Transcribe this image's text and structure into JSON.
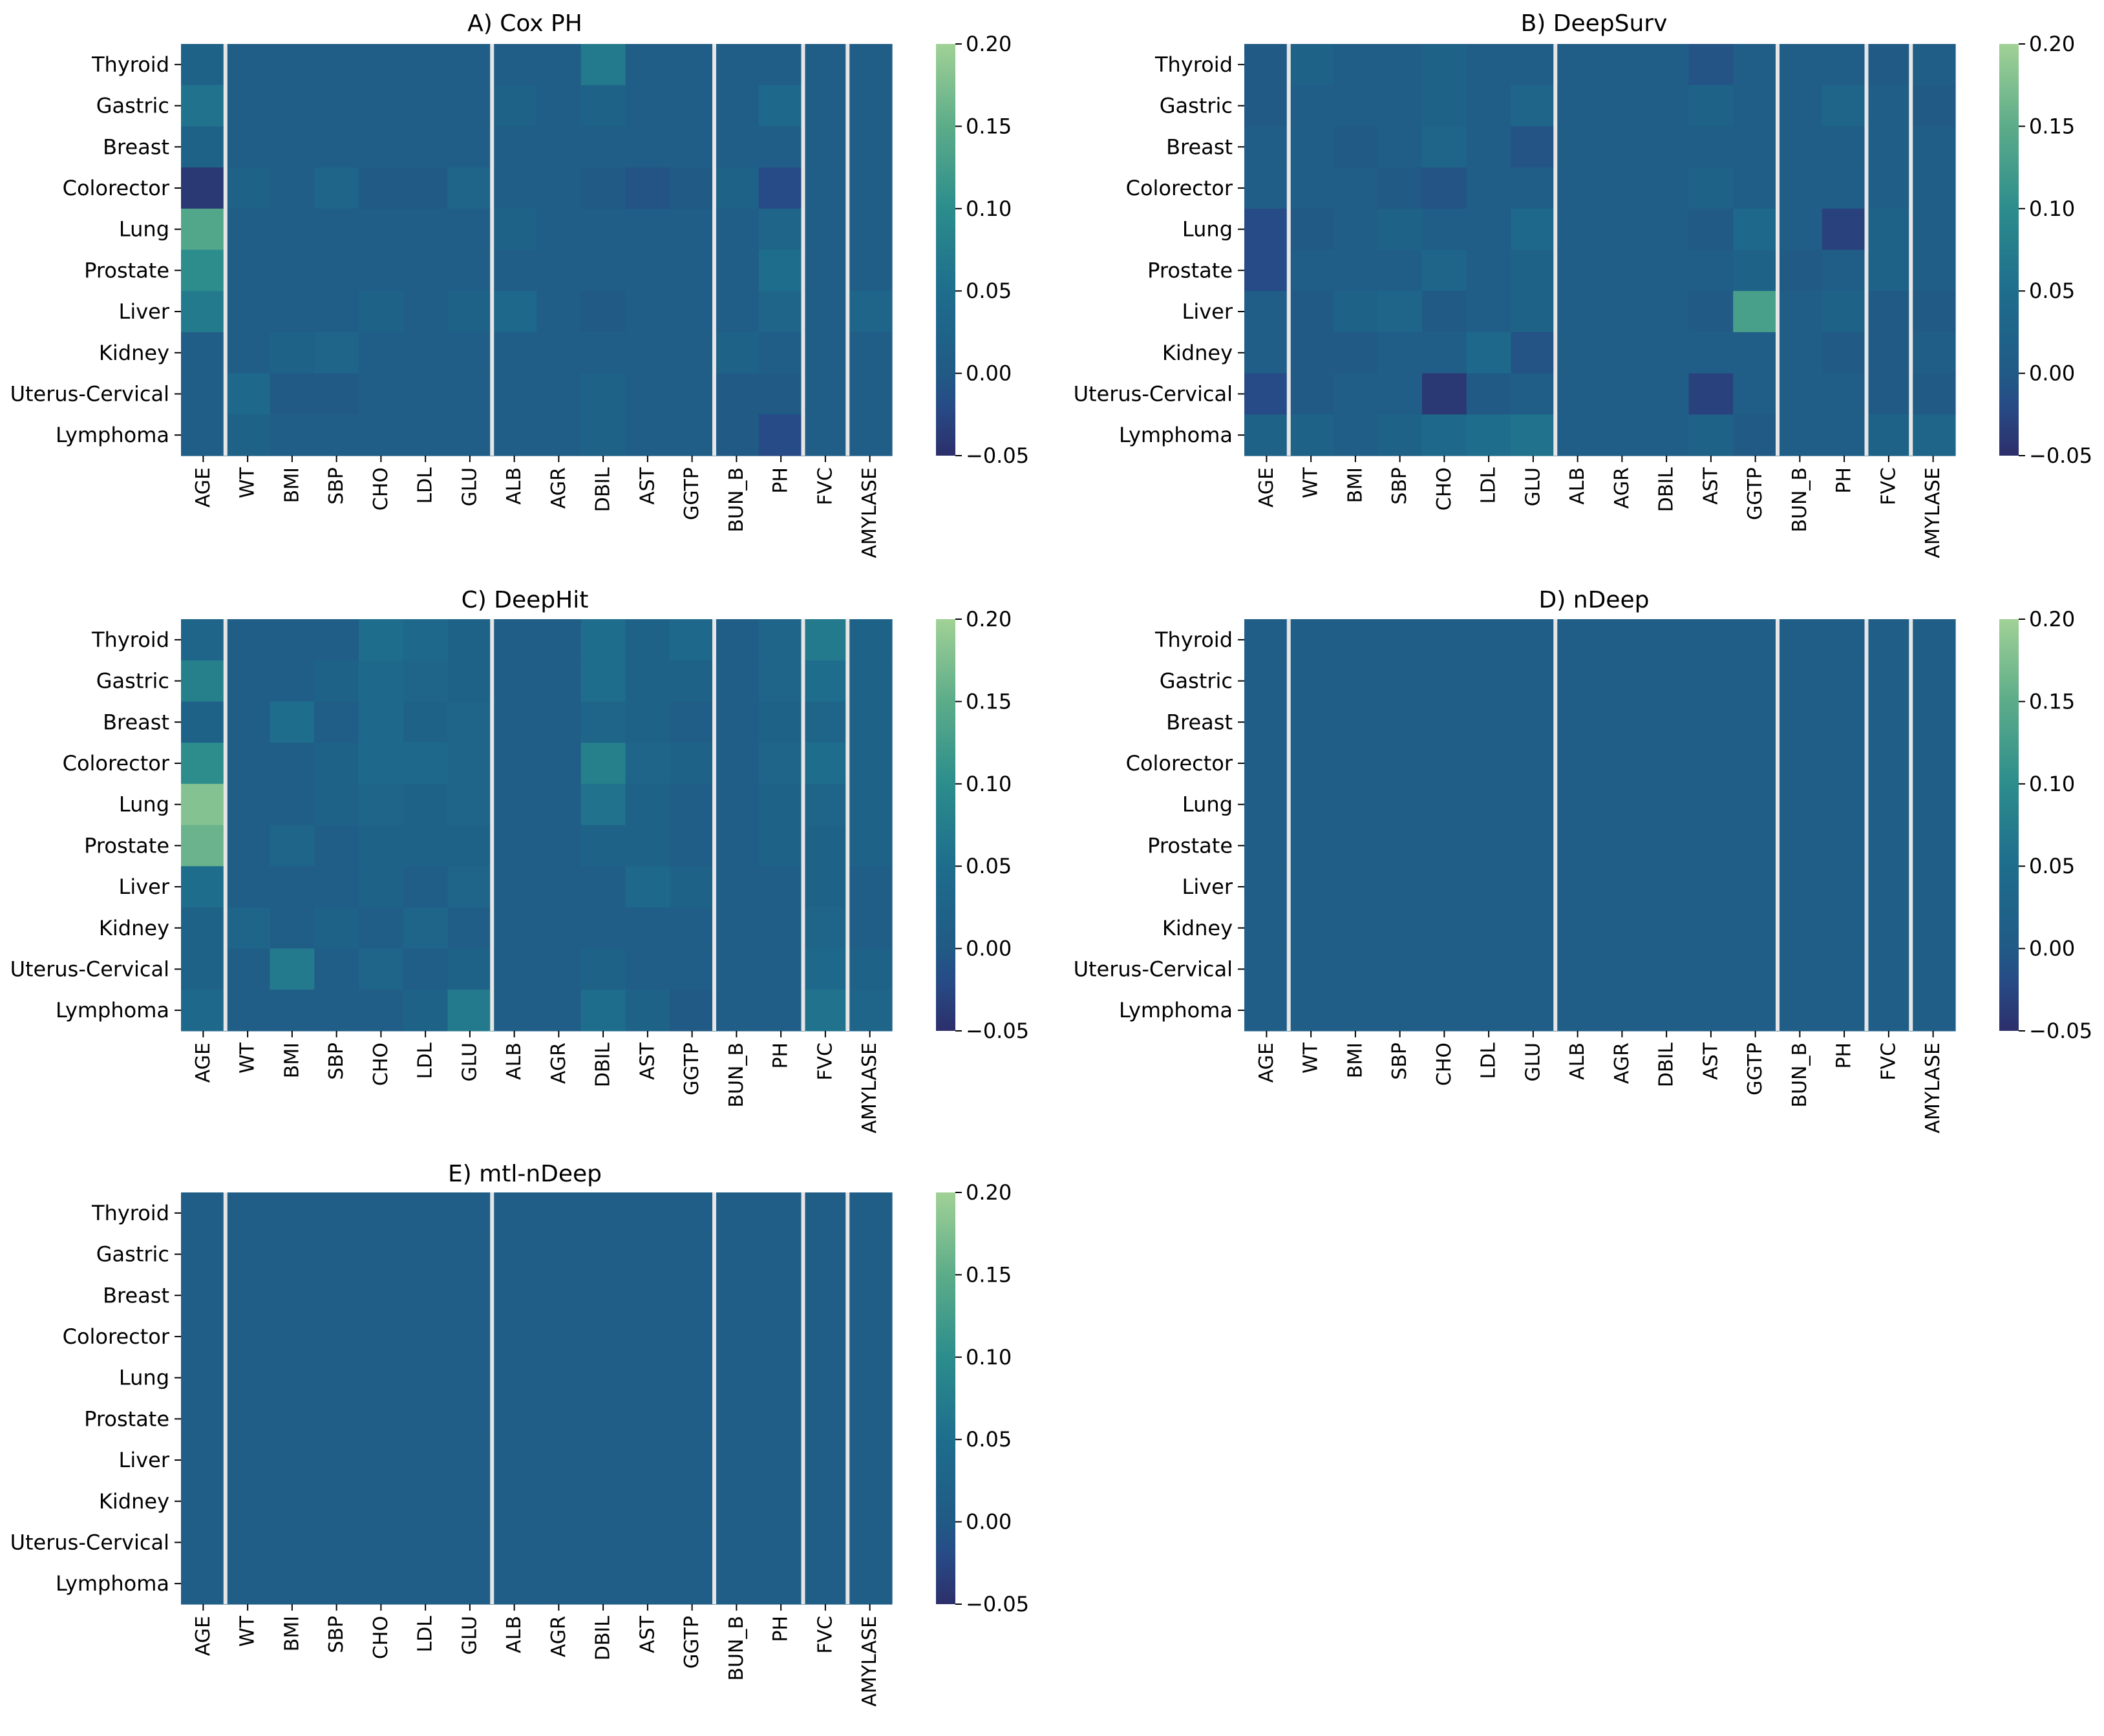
{
  "colormap": {
    "stops": [
      {
        "v": -0.05,
        "color": "#2c2f6b"
      },
      {
        "v": -0.02,
        "color": "#274b86"
      },
      {
        "v": 0.0,
        "color": "#205a85"
      },
      {
        "v": 0.05,
        "color": "#1e6d8d"
      },
      {
        "v": 0.1,
        "color": "#2c8d8c"
      },
      {
        "v": 0.15,
        "color": "#5cac89"
      },
      {
        "v": 0.2,
        "color": "#a1d196"
      }
    ],
    "separator_color": "#e6e6e6"
  },
  "chart_data": [
    {
      "type": "heatmap",
      "title": "A) Cox PH",
      "rows": [
        "Thyroid",
        "Gastric",
        "Breast",
        "Colorector",
        "Lung",
        "Prostate",
        "Liver",
        "Kidney",
        "Uterus-Cervical",
        "Lymphoma"
      ],
      "columns": [
        "AGE",
        "WT",
        "BMI",
        "SBP",
        "CHO",
        "LDL",
        "GLU",
        "ALB",
        "AGR",
        "DBIL",
        "AST",
        "GGTP",
        "BUN_B",
        "PH",
        "FVC",
        "AMYLASE"
      ],
      "group_separators_after": [
        "AGE",
        "GLU",
        "GGTP",
        "PH",
        "FVC"
      ],
      "vmin": -0.05,
      "vmax": 0.2,
      "colorbar_ticks": [
        "0.20",
        "0.15",
        "0.10",
        "0.05",
        "0.00",
        "−0.05"
      ],
      "values": [
        [
          0.02,
          0.01,
          0.01,
          0.01,
          0.01,
          0.01,
          0.01,
          0.01,
          0.01,
          0.07,
          0.01,
          0.01,
          0.01,
          0.01,
          0.01,
          0.01
        ],
        [
          0.06,
          0.01,
          0.01,
          0.01,
          0.01,
          0.01,
          0.01,
          0.02,
          0.01,
          0.02,
          0.01,
          0.01,
          0.01,
          0.04,
          0.01,
          0.01
        ],
        [
          0.02,
          0.01,
          0.01,
          0.01,
          0.01,
          0.01,
          0.01,
          0.01,
          0.01,
          0.01,
          0.01,
          0.01,
          0.01,
          0.01,
          0.01,
          0.01
        ],
        [
          -0.04,
          0.02,
          0.01,
          0.03,
          0.0,
          0.0,
          0.03,
          0.01,
          0.01,
          0.0,
          -0.01,
          0.0,
          0.02,
          -0.02,
          0.01,
          0.01
        ],
        [
          0.14,
          0.01,
          0.01,
          0.01,
          0.01,
          0.01,
          0.01,
          0.02,
          0.01,
          0.01,
          0.01,
          0.01,
          0.01,
          0.03,
          0.01,
          0.01
        ],
        [
          0.1,
          0.01,
          0.01,
          0.01,
          0.01,
          0.01,
          0.01,
          0.01,
          0.01,
          0.01,
          0.01,
          0.01,
          0.01,
          0.05,
          0.01,
          0.01
        ],
        [
          0.07,
          0.01,
          0.01,
          0.01,
          0.02,
          0.01,
          0.02,
          0.04,
          0.01,
          0.0,
          0.01,
          0.01,
          0.01,
          0.03,
          0.01,
          0.03
        ],
        [
          0.01,
          0.01,
          0.02,
          0.03,
          0.01,
          0.01,
          0.01,
          0.01,
          0.01,
          0.01,
          0.01,
          0.01,
          0.02,
          0.01,
          0.01,
          0.01
        ],
        [
          0.01,
          0.04,
          0.0,
          0.0,
          0.01,
          0.01,
          0.01,
          0.01,
          0.01,
          0.02,
          0.01,
          0.01,
          0.0,
          0.0,
          0.01,
          0.01
        ],
        [
          0.01,
          0.02,
          0.01,
          0.01,
          0.01,
          0.01,
          0.01,
          0.01,
          0.01,
          0.02,
          0.01,
          0.01,
          0.0,
          -0.02,
          0.01,
          0.01
        ]
      ]
    },
    {
      "type": "heatmap",
      "title": "B) DeepSurv",
      "rows": [
        "Thyroid",
        "Gastric",
        "Breast",
        "Colorector",
        "Lung",
        "Prostate",
        "Liver",
        "Kidney",
        "Uterus-Cervical",
        "Lymphoma"
      ],
      "columns": [
        "AGE",
        "WT",
        "BMI",
        "SBP",
        "CHO",
        "LDL",
        "GLU",
        "ALB",
        "AGR",
        "DBIL",
        "AST",
        "GGTP",
        "BUN_B",
        "PH",
        "FVC",
        "AMYLASE"
      ],
      "group_separators_after": [
        "AGE",
        "GLU",
        "GGTP",
        "PH",
        "FVC"
      ],
      "vmin": -0.05,
      "vmax": 0.2,
      "colorbar_ticks": [
        "0.20",
        "0.15",
        "0.10",
        "0.05",
        "0.00",
        "−0.05"
      ],
      "values": [
        [
          0.0,
          0.02,
          0.01,
          0.01,
          0.02,
          0.01,
          0.01,
          0.01,
          0.01,
          0.01,
          -0.01,
          0.01,
          0.01,
          0.01,
          0.0,
          0.01
        ],
        [
          0.0,
          0.01,
          0.01,
          0.01,
          0.02,
          0.01,
          0.03,
          0.01,
          0.01,
          0.01,
          0.02,
          0.01,
          0.01,
          0.03,
          0.01,
          0.0
        ],
        [
          0.01,
          0.01,
          0.0,
          0.01,
          0.03,
          0.01,
          -0.01,
          0.01,
          0.01,
          0.01,
          0.01,
          0.01,
          0.01,
          0.01,
          0.01,
          0.01
        ],
        [
          0.01,
          0.01,
          0.01,
          0.0,
          -0.01,
          0.01,
          0.01,
          0.01,
          0.01,
          0.01,
          0.02,
          0.01,
          0.01,
          0.01,
          0.01,
          0.01
        ],
        [
          -0.02,
          0.0,
          0.01,
          0.02,
          0.01,
          0.01,
          0.04,
          0.01,
          0.01,
          0.01,
          0.0,
          0.04,
          0.01,
          -0.03,
          0.02,
          0.01
        ],
        [
          -0.02,
          0.01,
          0.01,
          0.01,
          0.03,
          0.01,
          0.02,
          0.01,
          0.01,
          0.01,
          0.01,
          0.02,
          0.0,
          0.01,
          0.02,
          0.01
        ],
        [
          0.01,
          0.0,
          0.02,
          0.03,
          0.0,
          0.01,
          0.02,
          0.01,
          0.01,
          0.01,
          0.0,
          0.13,
          0.01,
          0.02,
          0.0,
          0.0
        ],
        [
          0.01,
          0.0,
          0.0,
          0.01,
          0.01,
          0.04,
          -0.01,
          0.01,
          0.01,
          0.01,
          0.01,
          0.01,
          0.01,
          0.0,
          0.0,
          0.01
        ],
        [
          -0.02,
          0.0,
          0.01,
          0.01,
          -0.04,
          0.0,
          0.01,
          0.01,
          0.01,
          0.01,
          -0.03,
          0.01,
          0.01,
          0.01,
          0.0,
          0.0
        ],
        [
          0.02,
          0.02,
          0.01,
          0.02,
          0.04,
          0.05,
          0.06,
          0.01,
          0.01,
          0.01,
          0.02,
          0.0,
          0.01,
          0.01,
          0.02,
          0.03
        ]
      ]
    },
    {
      "type": "heatmap",
      "title": "C) DeepHit",
      "rows": [
        "Thyroid",
        "Gastric",
        "Breast",
        "Colorector",
        "Lung",
        "Prostate",
        "Liver",
        "Kidney",
        "Uterus-Cervical",
        "Lymphoma"
      ],
      "columns": [
        "AGE",
        "WT",
        "BMI",
        "SBP",
        "CHO",
        "LDL",
        "GLU",
        "ALB",
        "AGR",
        "DBIL",
        "AST",
        "GGTP",
        "BUN_B",
        "PH",
        "FVC",
        "AMYLASE"
      ],
      "group_separators_after": [
        "AGE",
        "GLU",
        "GGTP",
        "PH",
        "FVC"
      ],
      "vmin": -0.05,
      "vmax": 0.2,
      "colorbar_ticks": [
        "0.20",
        "0.15",
        "0.10",
        "0.05",
        "0.00",
        "−0.05"
      ],
      "values": [
        [
          0.03,
          0.01,
          0.01,
          0.01,
          0.05,
          0.04,
          0.02,
          0.01,
          0.01,
          0.05,
          0.02,
          0.04,
          0.01,
          0.03,
          0.07,
          0.02
        ],
        [
          0.08,
          0.01,
          0.01,
          0.02,
          0.04,
          0.03,
          0.02,
          0.01,
          0.01,
          0.05,
          0.02,
          0.02,
          0.01,
          0.03,
          0.05,
          0.02
        ],
        [
          0.02,
          0.01,
          0.05,
          0.01,
          0.04,
          0.02,
          0.03,
          0.01,
          0.01,
          0.03,
          0.02,
          0.01,
          0.01,
          0.02,
          0.03,
          0.02
        ],
        [
          0.1,
          0.01,
          0.01,
          0.02,
          0.04,
          0.04,
          0.03,
          0.01,
          0.01,
          0.08,
          0.03,
          0.02,
          0.01,
          0.03,
          0.05,
          0.02
        ],
        [
          0.18,
          0.01,
          0.01,
          0.02,
          0.03,
          0.02,
          0.03,
          0.01,
          0.01,
          0.06,
          0.02,
          0.01,
          0.01,
          0.02,
          0.03,
          0.02
        ],
        [
          0.16,
          0.01,
          0.03,
          0.01,
          0.02,
          0.02,
          0.02,
          0.01,
          0.01,
          0.02,
          0.02,
          0.01,
          0.01,
          0.02,
          0.02,
          0.02
        ],
        [
          0.05,
          0.01,
          0.01,
          0.01,
          0.02,
          0.01,
          0.03,
          0.01,
          0.01,
          0.01,
          0.04,
          0.02,
          0.01,
          0.01,
          0.02,
          0.01
        ],
        [
          0.02,
          0.03,
          0.01,
          0.02,
          0.01,
          0.03,
          0.01,
          0.01,
          0.01,
          0.01,
          0.01,
          0.01,
          0.01,
          0.01,
          0.03,
          0.01
        ],
        [
          0.02,
          0.01,
          0.07,
          0.01,
          0.03,
          0.01,
          0.02,
          0.01,
          0.01,
          0.02,
          0.01,
          0.01,
          0.01,
          0.01,
          0.04,
          0.02
        ],
        [
          0.04,
          0.01,
          0.01,
          0.01,
          0.01,
          0.02,
          0.07,
          0.01,
          0.01,
          0.05,
          0.02,
          0.0,
          0.01,
          0.01,
          0.06,
          0.03
        ]
      ]
    },
    {
      "type": "heatmap",
      "title": "D) nDeep",
      "rows": [
        "Thyroid",
        "Gastric",
        "Breast",
        "Colorector",
        "Lung",
        "Prostate",
        "Liver",
        "Kidney",
        "Uterus-Cervical",
        "Lymphoma"
      ],
      "columns": [
        "AGE",
        "WT",
        "BMI",
        "SBP",
        "CHO",
        "LDL",
        "GLU",
        "ALB",
        "AGR",
        "DBIL",
        "AST",
        "GGTP",
        "BUN_B",
        "PH",
        "FVC",
        "AMYLASE"
      ],
      "group_separators_after": [
        "AGE",
        "GLU",
        "GGTP",
        "PH",
        "FVC"
      ],
      "vmin": -0.05,
      "vmax": 0.2,
      "colorbar_ticks": [
        "0.20",
        "0.15",
        "0.10",
        "0.05",
        "0.00",
        "−0.05"
      ],
      "uniform_value": 0.01
    },
    {
      "type": "heatmap",
      "title": "E) mtl-nDeep",
      "rows": [
        "Thyroid",
        "Gastric",
        "Breast",
        "Colorector",
        "Lung",
        "Prostate",
        "Liver",
        "Kidney",
        "Uterus-Cervical",
        "Lymphoma"
      ],
      "columns": [
        "AGE",
        "WT",
        "BMI",
        "SBP",
        "CHO",
        "LDL",
        "GLU",
        "ALB",
        "AGR",
        "DBIL",
        "AST",
        "GGTP",
        "BUN_B",
        "PH",
        "FVC",
        "AMYLASE"
      ],
      "group_separators_after": [
        "AGE",
        "GLU",
        "GGTP",
        "PH",
        "FVC"
      ],
      "vmin": -0.05,
      "vmax": 0.2,
      "colorbar_ticks": [
        "0.20",
        "0.15",
        "0.10",
        "0.05",
        "0.00",
        "−0.05"
      ],
      "uniform_value": 0.01
    }
  ]
}
